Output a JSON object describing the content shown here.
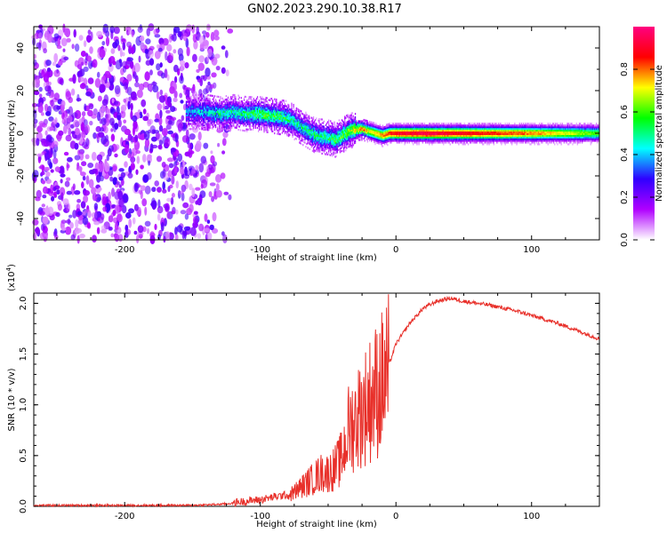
{
  "title": "GN02.2023.290.10.38.R17",
  "colors": {
    "snr_line": "#e8302a",
    "frame": "#000000"
  },
  "chart_data": [
    {
      "type": "heatmap",
      "xlabel": "Height of straight line (km)",
      "ylabel": "Frequency (Hz)",
      "xlim": [
        -267,
        150
      ],
      "ylim": [
        -50,
        50
      ],
      "x_ticks": [
        -200,
        -100,
        0,
        100
      ],
      "y_ticks": [
        -40,
        -20,
        0,
        20,
        40
      ],
      "colorbar": {
        "label": "Normalized spectral amplitude",
        "range": [
          0.0,
          1.0
        ],
        "ticks": [
          "0.0",
          "0.2",
          "0.4",
          "0.6",
          "0.8"
        ],
        "colormap": [
          "#ffffff",
          "#b000ff",
          "#2f00ff",
          "#00ffff",
          "#00ff00",
          "#ffff00",
          "#ff0000",
          "#ff0080"
        ]
      },
      "noise_region_km": [
        -267,
        -122
      ],
      "ridge": {
        "x": [
          -155,
          -140,
          -130,
          -120,
          -110,
          -100,
          -90,
          -80,
          -70,
          -60,
          -50,
          -45,
          -40,
          -35,
          -30,
          -25,
          -20,
          -15,
          -10,
          -5,
          0,
          20,
          50,
          100,
          150
        ],
        "frequency": [
          10,
          10,
          9,
          10,
          9,
          9,
          8,
          7,
          3,
          -1,
          -2,
          -3,
          -1,
          1,
          2,
          2,
          1,
          0,
          -1,
          0,
          0,
          0,
          0,
          0,
          0
        ],
        "amplitude": [
          0.35,
          0.4,
          0.45,
          0.45,
          0.5,
          0.55,
          0.55,
          0.5,
          0.45,
          0.5,
          0.5,
          0.55,
          0.55,
          0.6,
          0.7,
          0.75,
          0.7,
          0.75,
          0.8,
          0.85,
          0.9,
          0.95,
          0.9,
          0.8,
          0.6
        ]
      }
    },
    {
      "type": "line",
      "xlabel": "Height of straight line (km)",
      "ylabel": "SNR (10 * v/v)",
      "y_multiplier": "(x10",
      "y_multiplier_exp": "4",
      "xlim": [
        -267,
        150
      ],
      "ylim": [
        0,
        2.1
      ],
      "x_ticks": [
        -200,
        -100,
        0,
        100
      ],
      "y_ticks": [
        "0.0",
        "0.5",
        "1.0",
        "1.5",
        "2.0"
      ],
      "x": [
        -267,
        -200,
        -150,
        -130,
        -120,
        -100,
        -80,
        -70,
        -60,
        -55,
        -50,
        -45,
        -40,
        -35,
        -30,
        -25,
        -20,
        -15,
        -10,
        -5,
        0,
        10,
        20,
        30,
        40,
        50,
        60,
        70,
        80,
        90,
        100,
        110,
        120,
        130,
        140,
        150
      ],
      "y": [
        0.0,
        0.0,
        0.0,
        0.01,
        0.02,
        0.05,
        0.1,
        0.2,
        0.3,
        0.35,
        0.35,
        0.4,
        0.5,
        0.8,
        0.9,
        1.0,
        1.1,
        1.2,
        1.3,
        1.4,
        1.6,
        1.8,
        1.95,
        2.02,
        2.05,
        2.02,
        2.0,
        1.98,
        1.95,
        1.92,
        1.88,
        1.84,
        1.8,
        1.75,
        1.7,
        1.65
      ]
    }
  ]
}
